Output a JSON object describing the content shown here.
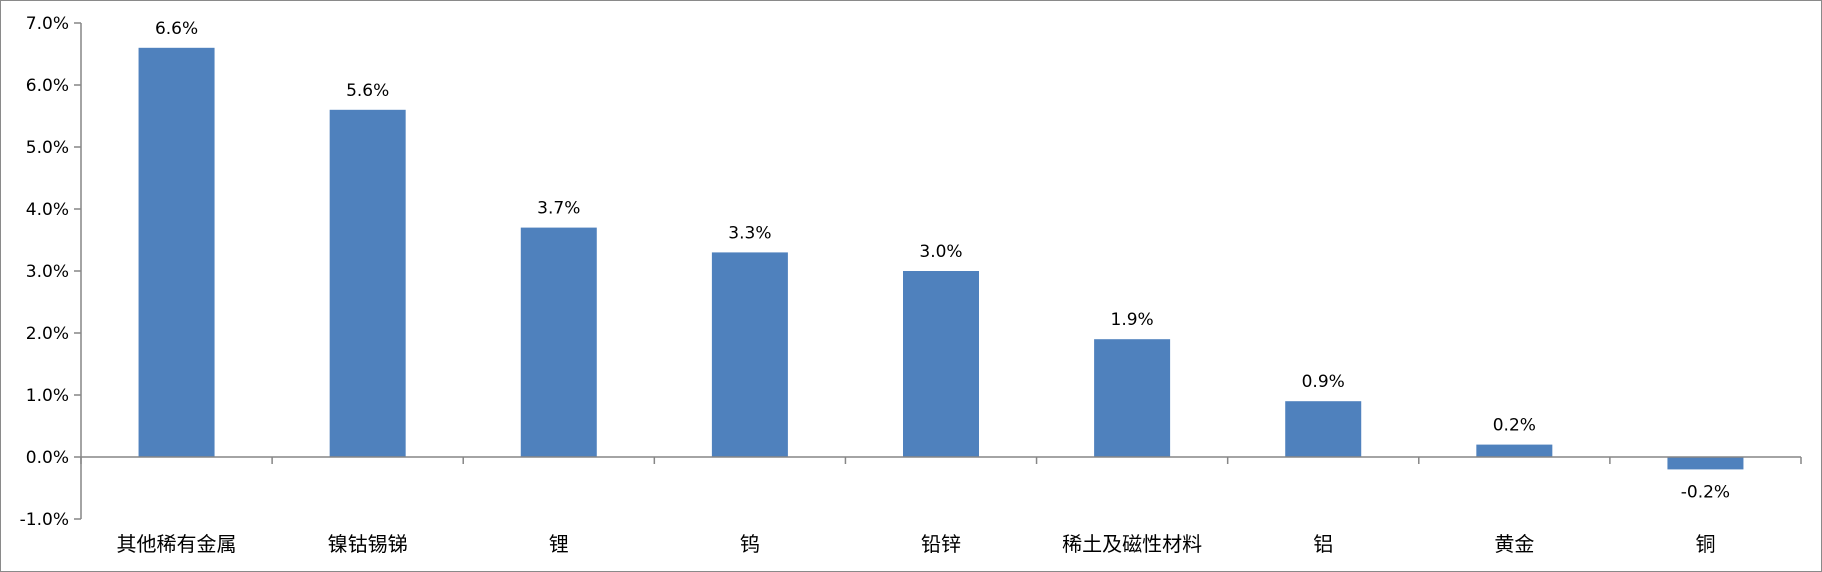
{
  "chart_data": {
    "type": "bar",
    "title": "",
    "xlabel": "",
    "ylabel": "",
    "categories": [
      "其他稀有金属",
      "镍钴锡锑",
      "锂",
      "钨",
      "铅锌",
      "稀土及磁性材料",
      "铝",
      "黄金",
      "铜"
    ],
    "values": [
      6.6,
      5.6,
      3.7,
      3.3,
      3.0,
      1.9,
      0.9,
      0.2,
      -0.2
    ],
    "data_labels": [
      "6.6%",
      "5.6%",
      "3.7%",
      "3.3%",
      "3.0%",
      "1.9%",
      "0.9%",
      "0.2%",
      "-0.2%"
    ],
    "ylim": [
      -1.0,
      7.0
    ],
    "yticks": [
      -1.0,
      0.0,
      1.0,
      2.0,
      3.0,
      4.0,
      5.0,
      6.0,
      7.0
    ],
    "ytick_labels": [
      "-1.0%",
      "0.0%",
      "1.0%",
      "2.0%",
      "3.0%",
      "4.0%",
      "5.0%",
      "6.0%",
      "7.0%"
    ],
    "unit": "%",
    "grid": false,
    "legend": "none",
    "bar_color": "#4f81bd",
    "axis_color": "#868686"
  }
}
